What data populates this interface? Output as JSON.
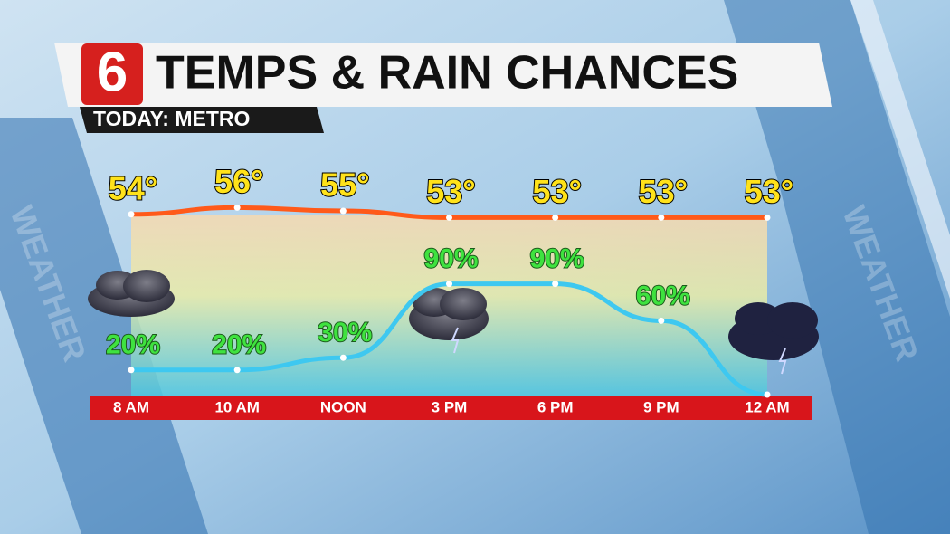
{
  "logo": "6",
  "watermark": "WEATHER",
  "chart_data": {
    "type": "line",
    "title": "TEMPS & RAIN CHANCES",
    "subtitle": "TODAY: METRO",
    "categories": [
      "8 AM",
      "10 AM",
      "NOON",
      "3 PM",
      "6 PM",
      "9 PM",
      "12 AM"
    ],
    "series": [
      {
        "name": "Temperature",
        "color": "#ff5a1a",
        "label_color": "#ffe21a",
        "axis": "y2",
        "values": [
          54,
          56,
          55,
          53,
          53,
          53,
          53
        ],
        "value_labels": [
          "54°",
          "56°",
          "55°",
          "53°",
          "53°",
          "53°",
          "53°"
        ]
      },
      {
        "name": "Rain Chance",
        "color": "#3ec8f0",
        "label_color": "#3fe23f",
        "values": [
          20,
          20,
          30,
          90,
          90,
          60,
          0
        ],
        "value_labels": [
          "20%",
          "20%",
          "30%",
          "90%",
          "90%",
          "60%",
          null
        ]
      }
    ],
    "ylim": [
      0,
      100
    ],
    "y2lim": [
      0,
      100
    ]
  }
}
